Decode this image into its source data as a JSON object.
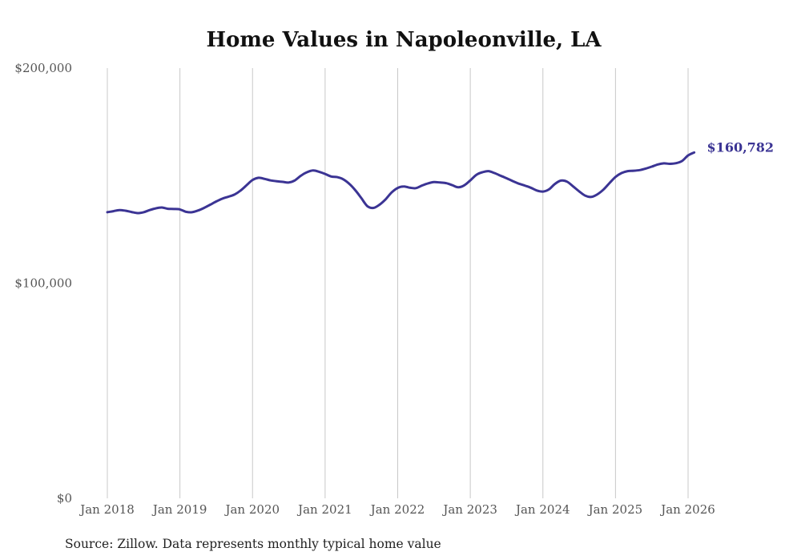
{
  "chart_data": {
    "type": "line",
    "title": "Home Values in Napoleonville, LA",
    "xlabel": "",
    "ylabel": "",
    "source_note": "Source: Zillow. Data represents monthly typical home value",
    "ylim": [
      0,
      200000
    ],
    "y_ticks": [
      {
        "value": 200000,
        "label": "$200,000"
      },
      {
        "value": 100000,
        "label": "$100,000"
      },
      {
        "value": 0,
        "label": "$0"
      }
    ],
    "x_ticks": [
      {
        "month_index": 0,
        "label": "Jan 2018"
      },
      {
        "month_index": 12,
        "label": "Jan 2019"
      },
      {
        "month_index": 24,
        "label": "Jan 2020"
      },
      {
        "month_index": 36,
        "label": "Jan 2021"
      },
      {
        "month_index": 48,
        "label": "Jan 2022"
      },
      {
        "month_index": 60,
        "label": "Jan 2023"
      },
      {
        "month_index": 72,
        "label": "Jan 2024"
      },
      {
        "month_index": 84,
        "label": "Jan 2025"
      },
      {
        "month_index": 96,
        "label": "Jan 2026"
      }
    ],
    "grid": "vertical",
    "line_color": "#3b3494",
    "start": "2018-01",
    "series": [
      {
        "name": "Typical home value",
        "values": [
          133000,
          133500,
          134000,
          133700,
          133100,
          132600,
          133000,
          134000,
          134800,
          135200,
          134600,
          134500,
          134300,
          133200,
          133000,
          133800,
          135000,
          136500,
          138000,
          139300,
          140200,
          141200,
          143000,
          145500,
          148000,
          149000,
          148500,
          147800,
          147400,
          147100,
          146800,
          147800,
          150000,
          151600,
          152400,
          151800,
          150800,
          149600,
          149300,
          148300,
          146200,
          143200,
          139500,
          135800,
          135000,
          136500,
          139000,
          142200,
          144300,
          145000,
          144400,
          144200,
          145400,
          146400,
          147000,
          146800,
          146500,
          145600,
          144600,
          145500,
          147800,
          150400,
          151600,
          152100,
          151200,
          150000,
          148800,
          147500,
          146300,
          145400,
          144400,
          143100,
          142600,
          143600,
          146200,
          147700,
          147200,
          145000,
          142700,
          140700,
          140100,
          141300,
          143500,
          146500,
          149400,
          151200,
          152100,
          152300,
          152600,
          153300,
          154200,
          155200,
          155700,
          155500,
          155800,
          156800,
          159400,
          160782
        ]
      }
    ],
    "end_label": "$160,782"
  }
}
